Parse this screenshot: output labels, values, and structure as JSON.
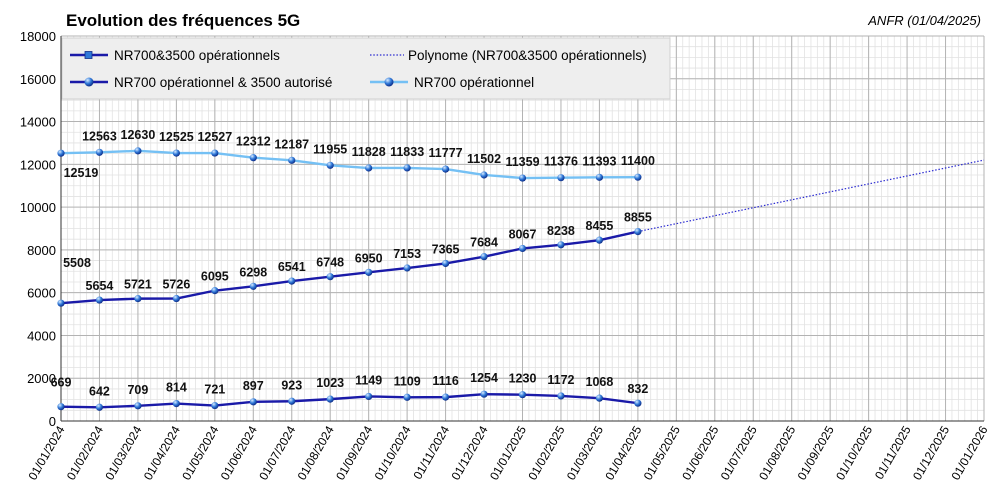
{
  "chart_data": {
    "type": "line",
    "title": "Evolution des fréquences 5G",
    "source": "ANFR (01/04/2025)",
    "xlabel": "",
    "ylabel": "",
    "ylim": [
      0,
      18000
    ],
    "yticks": [
      0,
      2000,
      4000,
      6000,
      8000,
      10000,
      12000,
      14000,
      16000,
      18000
    ],
    "x_ticks": [
      "01/01/2024",
      "01/02/2024",
      "01/03/2024",
      "01/04/2024",
      "01/05/2024",
      "01/06/2024",
      "01/07/2024",
      "01/08/2024",
      "01/09/2024",
      "01/10/2024",
      "01/11/2024",
      "01/12/2024",
      "01/01/2025",
      "01/02/2025",
      "01/03/2025",
      "01/04/2025",
      "01/05/2025",
      "01/06/2025",
      "01/07/2025",
      "01/08/2025",
      "01/09/2025",
      "01/10/2025",
      "01/11/2025",
      "01/12/2025",
      "01/01/2026"
    ],
    "x": [
      "01/01/2024",
      "01/02/2024",
      "01/03/2024",
      "01/04/2024",
      "01/05/2024",
      "01/06/2024",
      "01/07/2024",
      "01/08/2024",
      "01/09/2024",
      "01/10/2024",
      "01/11/2024",
      "01/12/2024",
      "01/01/2025",
      "01/02/2025",
      "01/03/2025",
      "01/04/2025"
    ],
    "grid": true,
    "legend_position": "top-left",
    "series": [
      {
        "name": "NR700&3500 opérationnels",
        "color": "#1a1aa8",
        "values": [
          5508,
          5654,
          5721,
          5726,
          6095,
          6298,
          6541,
          6748,
          6950,
          7153,
          7365,
          7684,
          8067,
          8238,
          8455,
          8855
        ]
      },
      {
        "name": "NR700 opérationnel & 3500 autorisé",
        "color": "#1a1aa8",
        "values": [
          669,
          642,
          709,
          814,
          721,
          897,
          923,
          1023,
          1149,
          1109,
          1116,
          1254,
          1230,
          1172,
          1068,
          832
        ]
      },
      {
        "name": "NR700 opérationnel",
        "color": "#74c0f4",
        "values": [
          12519,
          12563,
          12630,
          12525,
          12527,
          12312,
          12187,
          11955,
          11828,
          11833,
          11777,
          11502,
          11359,
          11376,
          11393,
          11400
        ]
      }
    ],
    "trendline": {
      "name": "Polynome (NR700&3500 opérationnels)",
      "color": "#2a2ad0",
      "x_from": "01/04/2025",
      "x_to": "01/01/2026",
      "y_from": 8855,
      "y_to": 12200
    }
  },
  "legend": [
    {
      "label": "NR700&3500 opérationnels",
      "color": "#1a1aa8",
      "style": "square-marker-line"
    },
    {
      "label": "Polynome (NR700&3500 opérationnels)",
      "color": "#2a2ad0",
      "style": "dotted"
    },
    {
      "label": "NR700 opérationnel & 3500 autorisé",
      "color": "#1a1aa8",
      "style": "ball-marker-line"
    },
    {
      "label": "NR700 opérationnel",
      "color": "#74c0f4",
      "style": "ball-marker-line"
    }
  ]
}
